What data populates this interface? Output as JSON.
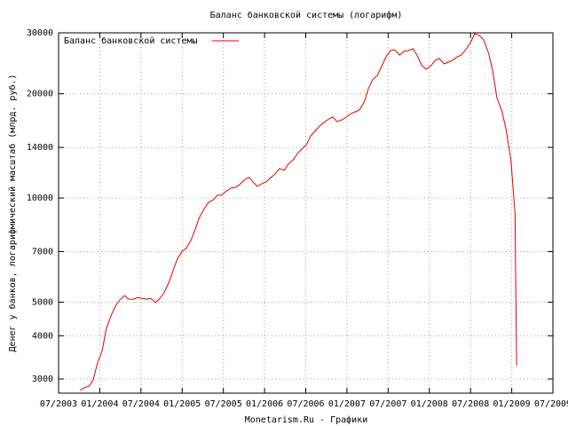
{
  "chart_data": {
    "type": "line",
    "title": "Баланс банковской системы (логарифм)",
    "y_label": "Денег у банков, логарифмический масштаб (млрд. руб.)",
    "x_label": "Monetarism.Ru - Графики",
    "log_y": true,
    "grid": true,
    "legend": "top-left",
    "xlim": [
      2003.5,
      2009.5
    ],
    "ylim": [
      2730,
      30000
    ],
    "xticks": [
      {
        "value": 2003.5,
        "label": "07/2003"
      },
      {
        "value": 2004.0,
        "label": "01/2004"
      },
      {
        "value": 2004.5,
        "label": "07/2004"
      },
      {
        "value": 2005.0,
        "label": "01/2005"
      },
      {
        "value": 2005.5,
        "label": "07/2005"
      },
      {
        "value": 2006.0,
        "label": "01/2006"
      },
      {
        "value": 2006.5,
        "label": "07/2006"
      },
      {
        "value": 2007.0,
        "label": "01/2007"
      },
      {
        "value": 2007.5,
        "label": "07/2007"
      },
      {
        "value": 2008.0,
        "label": "01/2008"
      },
      {
        "value": 2008.5,
        "label": "07/2008"
      },
      {
        "value": 2009.0,
        "label": "01/2009"
      },
      {
        "value": 2009.5,
        "label": "07/2009"
      }
    ],
    "yticks": [
      3000,
      4000,
      5000,
      7000,
      10000,
      14000,
      20000,
      30000
    ],
    "x": [
      2003.76,
      2003.81,
      2003.87,
      2003.92,
      2003.97,
      2004.03,
      2004.08,
      2004.14,
      2004.19,
      2004.24,
      2004.3,
      2004.35,
      2004.41,
      2004.46,
      2004.51,
      2004.57,
      2004.62,
      2004.68,
      2004.73,
      2004.78,
      2004.84,
      2004.89,
      2004.94,
      2005.0,
      2005.05,
      2005.11,
      2005.16,
      2005.21,
      2005.27,
      2005.32,
      2005.38,
      2005.43,
      2005.48,
      2005.54,
      2005.59,
      2005.65,
      2005.7,
      2005.75,
      2005.81,
      2005.86,
      2005.91,
      2005.97,
      2006.02,
      2006.08,
      2006.13,
      2006.18,
      2006.24,
      2006.29,
      2006.35,
      2006.4,
      2006.45,
      2006.51,
      2006.56,
      2006.61,
      2006.67,
      2006.72,
      2006.78,
      2006.83,
      2006.88,
      2006.94,
      2006.99,
      2007.05,
      2007.1,
      2007.15,
      2007.21,
      2007.26,
      2007.31,
      2007.37,
      2007.42,
      2007.48,
      2007.53,
      2007.58,
      2007.64,
      2007.69,
      2007.75,
      2007.8,
      2007.85,
      2007.91,
      2007.96,
      2008.02,
      2008.07,
      2008.12,
      2008.18,
      2008.23,
      2008.28,
      2008.34,
      2008.39,
      2008.45,
      2008.5,
      2008.55,
      2008.61,
      2008.66,
      2008.72,
      2008.77,
      2008.82,
      2008.88,
      2008.93,
      2008.99,
      2009.04,
      2009.05,
      2009.06
    ],
    "series": [
      {
        "name": "Баланс банковской системы",
        "color": "#e00000",
        "values": [
          2780,
          2830,
          2860,
          2980,
          3320,
          3630,
          4200,
          4590,
          4870,
          5070,
          5230,
          5100,
          5100,
          5160,
          5130,
          5100,
          5130,
          4990,
          5130,
          5320,
          5710,
          6170,
          6660,
          7020,
          7150,
          7580,
          8140,
          8790,
          9320,
          9710,
          9890,
          10190,
          10190,
          10490,
          10680,
          10740,
          10940,
          11260,
          11470,
          11130,
          10810,
          11000,
          11130,
          11470,
          11740,
          12160,
          12020,
          12530,
          12900,
          13440,
          13840,
          14260,
          15130,
          15580,
          16140,
          16520,
          16920,
          17120,
          16620,
          16820,
          17120,
          17530,
          17740,
          17950,
          18930,
          20680,
          21940,
          22600,
          23970,
          25730,
          26660,
          26810,
          25880,
          26510,
          26660,
          26980,
          25880,
          24110,
          23550,
          24110,
          24980,
          25280,
          24400,
          24690,
          24980,
          25580,
          25880,
          26980,
          28110,
          29820,
          29470,
          28620,
          26190,
          23270,
          19500,
          17840,
          15860,
          12900,
          9050,
          5320,
          3280
        ]
      }
    ]
  }
}
